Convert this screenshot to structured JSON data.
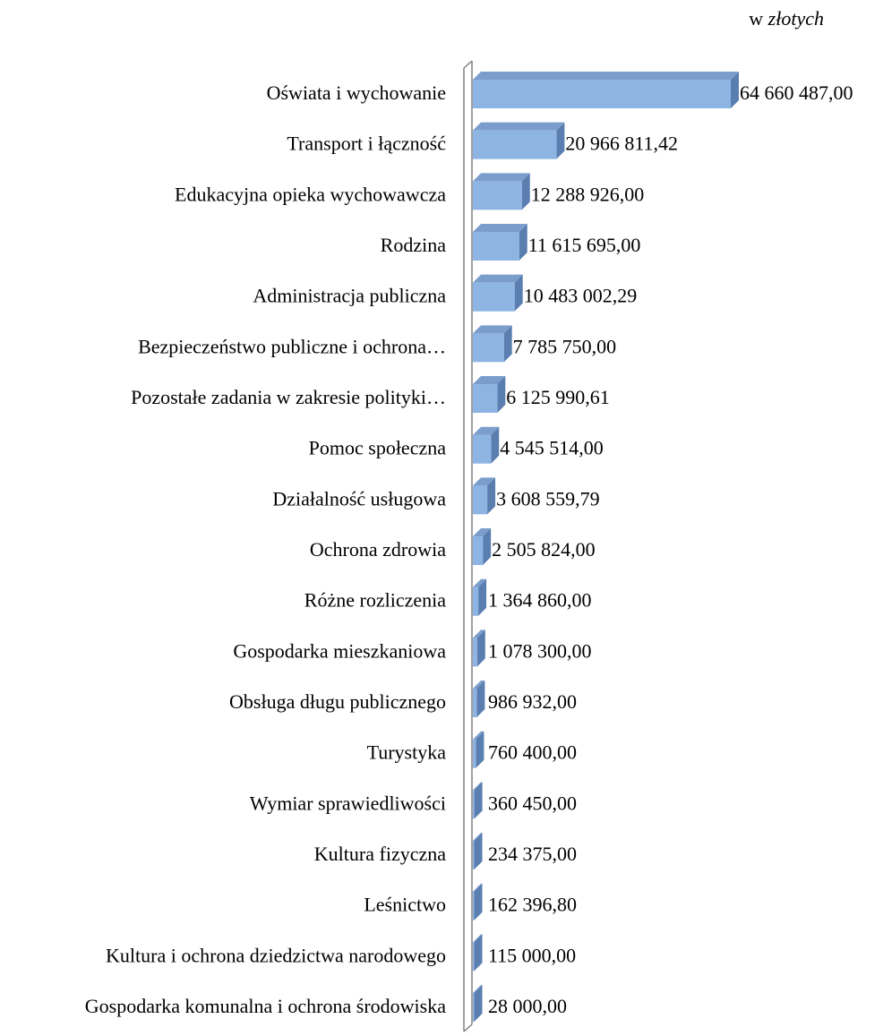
{
  "unit_note": {
    "prefix": "w",
    "italic": "złotych"
  },
  "chart_data": {
    "type": "bar",
    "orientation": "horizontal",
    "style": "3d",
    "grid": false,
    "legend": "none",
    "xlim": [
      0,
      64660487
    ],
    "colors": {
      "bar_front": "#8db4e3",
      "bar_top": "#7a9dcc",
      "bar_side": "#5a7eb0",
      "axis_wall": "#808080"
    },
    "categories": [
      "Oświata i wychowanie",
      "Transport i łączność",
      "Edukacyjna opieka wychowawcza",
      "Rodzina",
      "Administracja publiczna",
      "Bezpieczeństwo publiczne i ochrona…",
      "Pozostałe zadania w zakresie polityki…",
      "Pomoc społeczna",
      "Działalność usługowa",
      "Ochrona zdrowia",
      "Różne rozliczenia",
      "Gospodarka mieszkaniowa",
      "Obsługa długu publicznego",
      "Turystyka",
      "Wymiar sprawiedliwości",
      "Kultura fizyczna",
      "Leśnictwo",
      "Kultura i ochrona dziedzictwa narodowego",
      "Gospodarka komunalna i ochrona środowiska"
    ],
    "values": [
      64660487.0,
      20966811.42,
      12288926.0,
      11615695.0,
      10483002.29,
      7785750.0,
      6125990.61,
      4545514.0,
      3608559.79,
      2505824.0,
      1364860.0,
      1078300.0,
      986932.0,
      760400.0,
      360450.0,
      234375.0,
      162396.8,
      115000.0,
      28000.0
    ],
    "value_labels": [
      "64 660 487,00",
      "20 966 811,42",
      "12 288 926,00",
      "11 615 695,00",
      "10 483 002,29",
      "7 785 750,00",
      "6 125 990,61",
      "4 545 514,00",
      "3 608 559,79",
      "2 505 824,00",
      "1 364 860,00",
      "1 078 300,00",
      "986 932,00",
      "760 400,00",
      "360 450,00",
      "234 375,00",
      "162 396,80",
      "115 000,00",
      "28 000,00"
    ]
  }
}
